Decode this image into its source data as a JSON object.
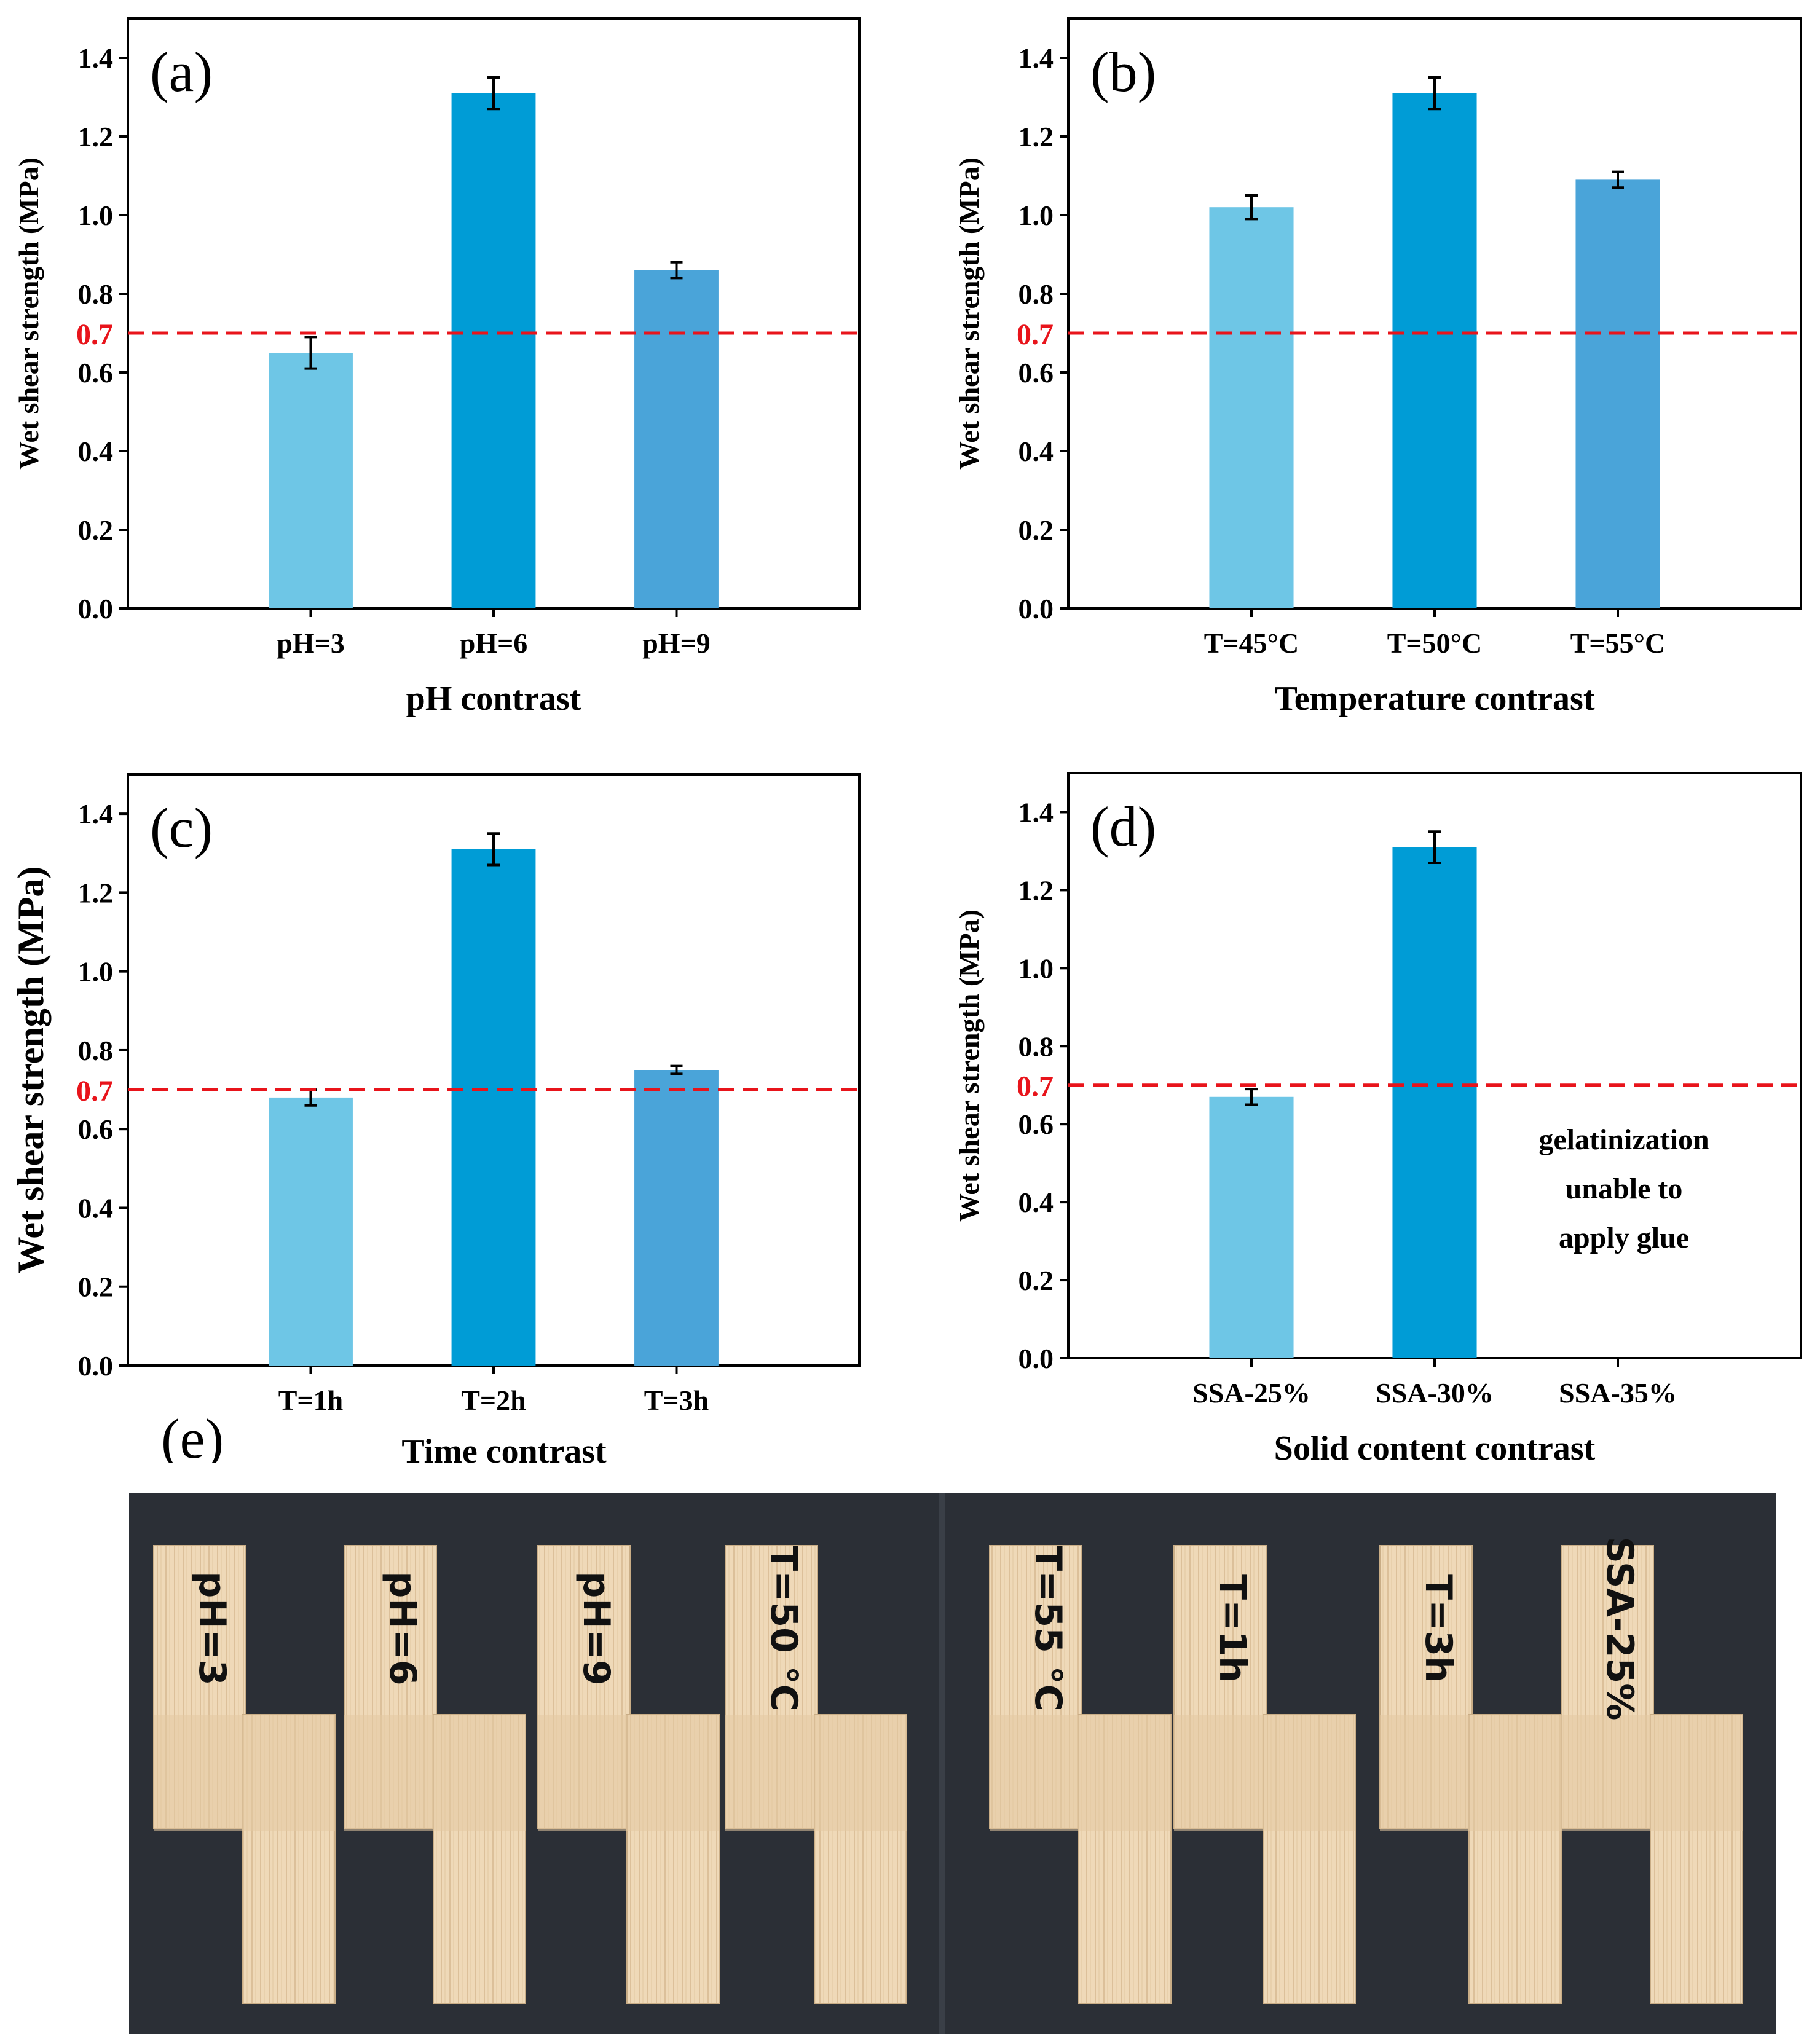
{
  "colors": {
    "light_blue": "#6ec6e6",
    "deep_blue": "#009cd6",
    "mid_blue": "#4aa4d9",
    "threshold_red": "#e8141b",
    "photo_background": "#2b2f36",
    "wood_light": "#efd9b8",
    "wood_dark": "#dcc09a"
  },
  "threshold": {
    "value": 0.7,
    "label": "0.7"
  },
  "chart_data": [
    {
      "id": "a",
      "type": "bar",
      "panel_label": "(a)",
      "categories": [
        "pH=3",
        "pH=6",
        "pH=9"
      ],
      "values": [
        0.65,
        1.31,
        0.86
      ],
      "errors": [
        0.04,
        0.04,
        0.02
      ],
      "xlabel": "pH contrast",
      "ylabel": "Wet shear strength (MPa)",
      "ylim": [
        0,
        1.5
      ],
      "yticks": [
        "0.0",
        "0.2",
        "0.4",
        "0.6",
        "0.8",
        "1.0",
        "1.2",
        "1.4"
      ],
      "annotation": []
    },
    {
      "id": "b",
      "type": "bar",
      "panel_label": "(b)",
      "categories": [
        "T=45°C",
        "T=50°C",
        "T=55°C"
      ],
      "values": [
        1.02,
        1.31,
        1.09
      ],
      "errors": [
        0.03,
        0.04,
        0.02
      ],
      "xlabel": "Temperature contrast",
      "ylabel": "Wet shear strength (MPa)",
      "ylim": [
        0,
        1.5
      ],
      "yticks": [
        "0.0",
        "0.2",
        "0.4",
        "0.6",
        "0.8",
        "1.0",
        "1.2",
        "1.4"
      ],
      "annotation": []
    },
    {
      "id": "c",
      "type": "bar",
      "panel_label": "(c)",
      "categories": [
        "T=1h",
        "T=2h",
        "T=3h"
      ],
      "values": [
        0.68,
        1.31,
        0.75
      ],
      "errors": [
        0.02,
        0.04,
        0.01
      ],
      "xlabel": "Time contrast",
      "ylabel": "Wet shear strength (MPa)",
      "ylim": [
        0,
        1.5
      ],
      "yticks": [
        "0.0",
        "0.2",
        "0.4",
        "0.6",
        "0.8",
        "1.0",
        "1.2",
        "1.4"
      ],
      "annotation": []
    },
    {
      "id": "d",
      "type": "bar",
      "panel_label": "(d)",
      "categories": [
        "SSA-25%",
        "SSA-30%",
        "SSA-35%"
      ],
      "values": [
        0.67,
        1.31,
        null
      ],
      "errors": [
        0.02,
        0.04,
        null
      ],
      "xlabel": "Solid content contrast",
      "ylabel": "Wet shear strength (MPa)",
      "ylim": [
        0,
        1.5
      ],
      "yticks": [
        "0.0",
        "0.2",
        "0.4",
        "0.6",
        "0.8",
        "1.0",
        "1.2",
        "1.4"
      ],
      "annotation": [
        "gelatinization",
        "unable to",
        "apply glue"
      ]
    }
  ],
  "photo": {
    "panel_label": "(e)",
    "specimens": [
      "pH=3",
      "pH=6",
      "pH=9",
      "T=50 °C",
      "T=55 °C",
      "T=1h",
      "T=3h",
      "SSA-25%"
    ]
  }
}
